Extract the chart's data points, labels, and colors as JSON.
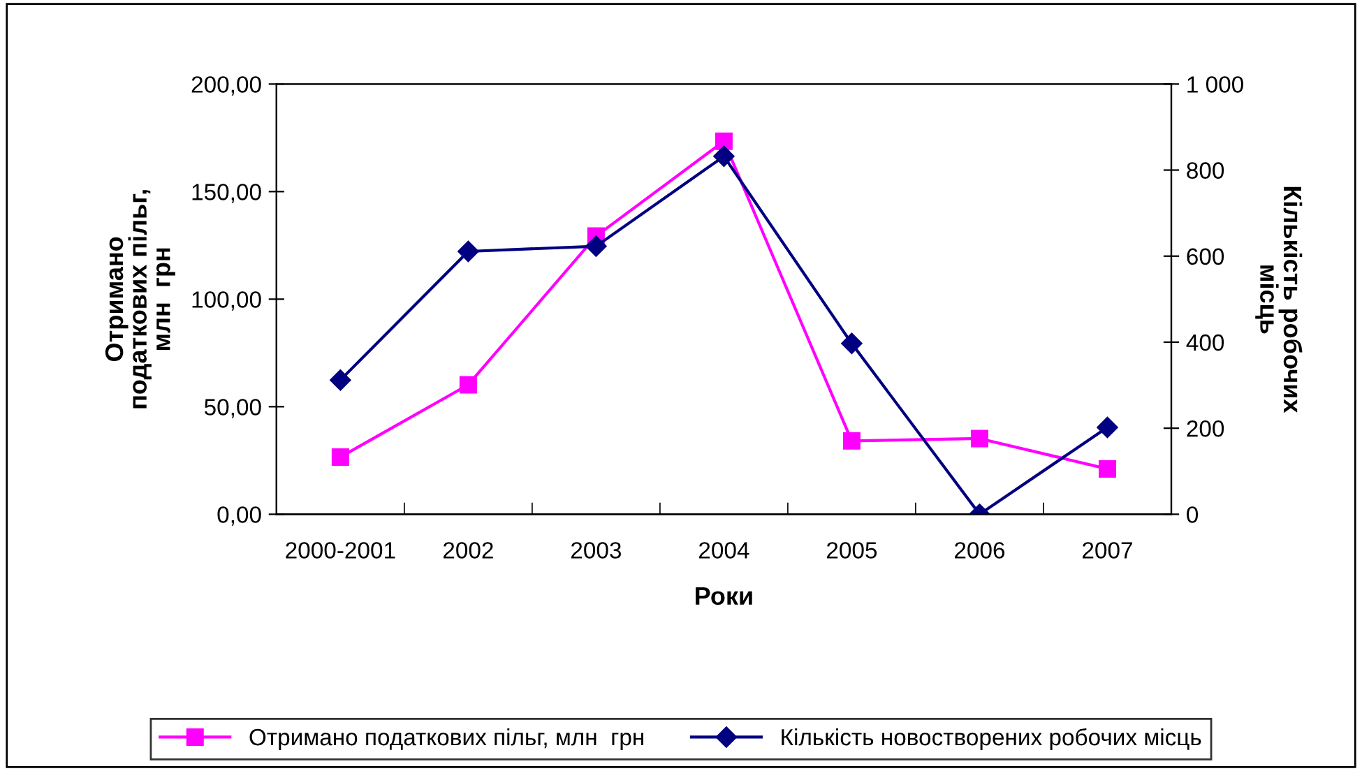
{
  "chart_data": {
    "type": "line",
    "xlabel": "Роки",
    "ylabel": "Отримано\nподаткових пільг,\nмлн  грн",
    "y2label": "Кількість робочих\nмісць",
    "categories": [
      "2000-2001",
      "2002",
      "2003",
      "2004",
      "2005",
      "2006",
      "2007"
    ],
    "series": [
      {
        "name": "Отримано податкових пільг, млн  грн",
        "color": "#ff00ff",
        "marker": "square",
        "values": [
          26.6,
          60.2,
          129.3,
          173.4,
          34.1,
          35.2,
          21.1
        ]
      },
      {
        "name": "Кількість новостворених робочих місць",
        "color": "#000080",
        "marker": "diamond",
        "axis": "y2",
        "values": [
          312,
          611,
          623,
          832,
          397,
          0,
          202
        ]
      }
    ],
    "ylim": [
      0,
      200
    ],
    "yticks": [
      {
        "value": 0,
        "label": "0,00"
      },
      {
        "value": 50,
        "label": "50,00"
      },
      {
        "value": 100,
        "label": "100,00"
      },
      {
        "value": 150,
        "label": "150,00"
      },
      {
        "value": 200,
        "label": "200,00"
      }
    ],
    "y2lim": [
      0,
      1000
    ],
    "y2ticks": [
      0,
      200,
      400,
      600,
      800,
      {
        "value": 1000,
        "label": "1 000"
      }
    ],
    "grid": false,
    "legend": "bottom",
    "line_style": "solid"
  }
}
